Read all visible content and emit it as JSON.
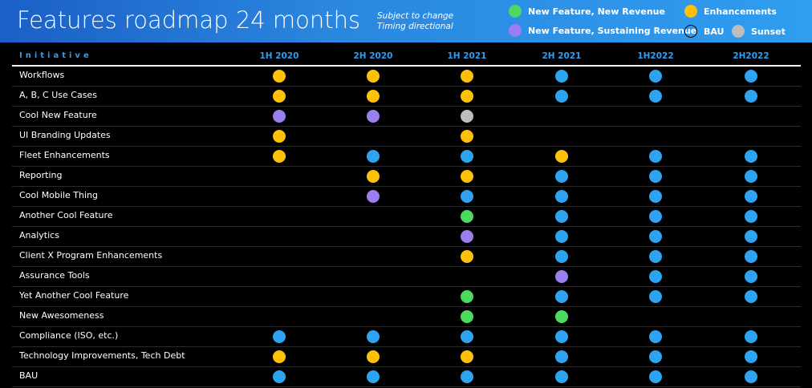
{
  "title": "Features roadmap 24 months",
  "note": [
    "Subject to change",
    "Timing directional"
  ],
  "colors": {
    "new_revenue": "#4cd95f",
    "enhancements": "#ffc107",
    "sustaining": "#9b7ef0",
    "bau": "#2ea3f2",
    "sunset": "#bdbdbd"
  },
  "legend": [
    {
      "key": "new_revenue",
      "label": "New Feature, New Revenue",
      "icon": "green-circle-icon"
    },
    {
      "key": "enhancements",
      "label": "Enhancements",
      "icon": "yellow-circle-icon"
    },
    {
      "key": "sustaining",
      "label": "New Feature, Sustaining Revenue",
      "icon": "purple-circle-icon"
    },
    {
      "key": "bau",
      "label": "BAU",
      "icon": "outline-circle-icon"
    },
    {
      "key": "sunset",
      "label": "Sunset",
      "icon": "gray-circle-icon"
    }
  ],
  "initiative_header": "Initiative",
  "periods": [
    "1H 2020",
    "2H 2020",
    "1H 2021",
    "2H 2021",
    "1H2022",
    "2H2022"
  ],
  "rows": [
    {
      "name": "Workflows",
      "status": [
        "enhancements",
        "enhancements",
        "enhancements",
        "bau",
        "bau",
        "bau"
      ]
    },
    {
      "name": "A, B, C Use Cases",
      "status": [
        "enhancements",
        "enhancements",
        "enhancements",
        "bau",
        "bau",
        "bau"
      ]
    },
    {
      "name": "Cool New Feature",
      "status": [
        "sustaining",
        "sustaining",
        "sunset",
        null,
        null,
        null
      ]
    },
    {
      "name": "UI Branding Updates",
      "status": [
        "enhancements",
        null,
        "enhancements",
        null,
        null,
        null
      ]
    },
    {
      "name": "Fleet Enhancements",
      "status": [
        "enhancements",
        "bau",
        "bau",
        "enhancements",
        "bau",
        "bau"
      ]
    },
    {
      "name": "Reporting",
      "status": [
        null,
        "enhancements",
        "enhancements",
        "bau",
        "bau",
        "bau"
      ]
    },
    {
      "name": "Cool Mobile Thing",
      "status": [
        null,
        "sustaining",
        "bau",
        "bau",
        "bau",
        "bau"
      ]
    },
    {
      "name": "Another Cool Feature",
      "status": [
        null,
        null,
        "new_revenue",
        "bau",
        "bau",
        "bau"
      ]
    },
    {
      "name": "Analytics",
      "status": [
        null,
        null,
        "sustaining",
        "bau",
        "bau",
        "bau"
      ]
    },
    {
      "name": "Client X Program Enhancements",
      "status": [
        null,
        null,
        "enhancements",
        "bau",
        "bau",
        "bau"
      ]
    },
    {
      "name": "Assurance Tools",
      "status": [
        null,
        null,
        null,
        "sustaining",
        "bau",
        "bau"
      ]
    },
    {
      "name": "Yet Another Cool Feature",
      "status": [
        null,
        null,
        "new_revenue",
        "bau",
        "bau",
        "bau"
      ]
    },
    {
      "name": "New Awesomeness",
      "status": [
        null,
        null,
        "new_revenue",
        "new_revenue",
        null,
        null
      ]
    },
    {
      "name": "Compliance (ISO, etc.)",
      "status": [
        "bau",
        "bau",
        "bau",
        "bau",
        "bau",
        "bau"
      ]
    },
    {
      "name": "Technology Improvements, Tech Debt",
      "status": [
        "enhancements",
        "enhancements",
        "enhancements",
        "bau",
        "bau",
        "bau"
      ]
    },
    {
      "name": "BAU",
      "status": [
        "bau",
        "bau",
        "bau",
        "bau",
        "bau",
        "bau"
      ]
    }
  ]
}
